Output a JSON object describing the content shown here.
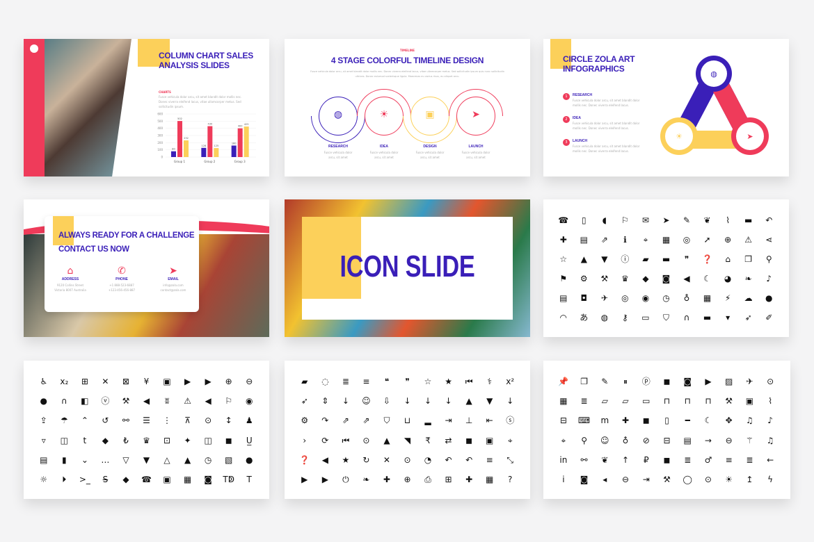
{
  "slide1": {
    "title_line1": "Column Chart Sales",
    "title_line2": "Analysis Slides",
    "label": "CHARTS",
    "body": "Fusce vehicula dolor arcu, sit amet blandit dolor mollis nec. Donec viverra eleifend lacus, vitae ullamcorper metus. Sed sollicitudin ipsum.",
    "chart_data": {
      "type": "bar",
      "categories": [
        "Group 1",
        "Group 2",
        "Group 3"
      ],
      "series": [
        {
          "values": [
            80,
            128,
            160
          ],
          "color": "#3a1fb8"
        },
        {
          "values": [
            502,
            430,
            400
          ],
          "color": "#ef3b5a"
        },
        {
          "values": [
            232,
            125,
            425
          ],
          "color": "#fcd05a"
        }
      ],
      "ylim": [
        0,
        600
      ],
      "yticks": [
        0,
        100,
        200,
        300,
        400,
        500,
        600
      ],
      "grid": true
    }
  },
  "slide2": {
    "label": "TIMELINE",
    "title": "4 Stage Colorful Timeline Design",
    "body": "Fusce vehicula dolor arcu, sit amet blandit dolor mollis nec. Donec viverra eleifend lacus, vitae ullamcorper metus. Sed sollicitudin ipsum quis nunc sollicitudin ultrices. Donec euismod scelerisque ligula. Maecenas eu varius risus, eu aliquet arcu.",
    "stages": [
      {
        "name": "RESEARCH",
        "color": "#3a1fb8",
        "icon": "globe-search-icon",
        "glyph": "◍"
      },
      {
        "name": "IDEA",
        "color": "#ef3b5a",
        "icon": "lightbulb-icon",
        "glyph": "☀"
      },
      {
        "name": "DESIGN",
        "color": "#fcd05a",
        "icon": "design-board-icon",
        "glyph": "▣"
      },
      {
        "name": "LAUNCH",
        "color": "#ef3b5a",
        "icon": "paper-plane-icon",
        "glyph": "➤"
      }
    ],
    "stage_text": "Fusce vehicula dolor arcu, sit amet"
  },
  "slide3": {
    "title_line1": "Circle Zola Art",
    "title_line2": "Infographics",
    "items": [
      {
        "num": "1",
        "name": "RESEARCH"
      },
      {
        "num": "2",
        "name": "IDEA"
      },
      {
        "num": "3",
        "name": "LAUNCH"
      }
    ],
    "item_text": "Fusce vehicula dolor arcu, sit amet blandit dolor mollis nec. Donec viverra eleifend lacus."
  },
  "slide4": {
    "title_line1": "Always Ready For A Challenge",
    "title_line2": "Contact Us Now",
    "cols": [
      {
        "name": "ADDRESS",
        "l1": "9120 Collins Street",
        "l2": "Victoria 8007 Australia"
      },
      {
        "name": "PHONE",
        "l1": "+1 888-523-6887",
        "l2": "+123-456-456-887"
      },
      {
        "name": "EMAIL",
        "l1": "info@zola.com",
        "l2": "contact@zola.com"
      }
    ]
  },
  "slide5": {
    "title": "ICON SLIDE"
  },
  "colors": {
    "accent": "#3a1fb8",
    "red": "#ef3b5a",
    "yellow": "#fcd05a"
  },
  "icons6": [
    "phone:☎",
    "mobile:▯",
    "mouse:◖",
    "signpost:⚐",
    "envelope:✉",
    "paper-plane:➤",
    "pencil:✎",
    "feather:❦",
    "paperclip:⌇",
    "car:▬",
    "reply:↶",
    "user-plus:✚",
    "id-card:▤",
    "share-square:⇗",
    "info:ℹ",
    "map-marker:⌖",
    "map:▦",
    "compass:◎",
    "location-arrow:➚",
    "crosshairs:⊕",
    "warning:⚠",
    "share:⋖",
    "star-outline:☆",
    "thumbs-up:▲",
    "thumbs-down:▼",
    "info-circle:ⓘ",
    "comments:▰",
    "comment:▬",
    "quote:❞",
    "question-circle:❓",
    "home:⌂",
    "clone:❐",
    "search:⚲",
    "flag:⚑",
    "gear:⚙",
    "tools:⚒",
    "trophy:♛",
    "tag:◆",
    "camera:◙",
    "bullhorn:◀",
    "moon:☾",
    "palette:◕",
    "leaf:❧",
    "music:♪",
    "sticky-note:▤",
    "cup:◘",
    "plane:✈",
    "life-ring:◎",
    "eye:◉",
    "clock:◷",
    "microphone:♁",
    "calendar:▦",
    "bolt:⚡",
    "cloud-download:☁",
    "tint:●",
    "dashboard:◠",
    "language:あ",
    "globe:◍",
    "key:⚷",
    "ticket:▭",
    "shield:⛉",
    "magnet:∩",
    "inbox:▬",
    "trash:▾",
    "rocket:➶",
    "paint-brush:✐"
  ],
  "icons7": [
    "wheelchair:♿",
    "subscript:x₂",
    "plus-square:⊞",
    "xing:✕",
    "xing-square:⊠",
    "yen:¥",
    "youtube:▣",
    "youtube-logo:▶",
    "play:▶",
    "zoom-in:⊕",
    "zoom-out:⊖",
    "user:●",
    "magnet:∩",
    "caret-square-left:◧",
    "vimeo:ⓥ",
    "wrench:⚒",
    "volume-off:◀",
    "vk:ʬ",
    "warning:⚠",
    "volume-up:◀",
    "flag-outline:⚐",
    "weibo:◉",
    "upload:⇪",
    "umbrella:☂",
    "chevron-up:⌃",
    "undo:↺",
    "unlink:⚯",
    "server:☰",
    "ellipsis-v:⋮",
    "chevron-circle-up:⊼",
    "arrow-circle-up:⊙",
    "arrows-v:↕",
    "user-secret:♟",
    "trash-outline:▿",
    "trello:◫",
    "tumblr:t",
    "tags:◆",
    "lira:₺",
    "trophy:♛",
    "tumblr-square:⊡",
    "twitter:✦",
    "columns:◫",
    "twitter-square:◼",
    "underline:U̲",
    "file-text:▤",
    "file:▮",
    "angle-double-down:⌄",
    "ellipsis-h:…",
    "thumbs-down-outline:▽",
    "thumbs-down:▼",
    "thumbs-up-outline:△",
    "thumbs-up:▲",
    "clock-circle:◷",
    "ticket:▧",
    "tint:●",
    "sun:☼",
    "step-forward:⏵",
    "terminal:>_",
    "strikethrough:S̶",
    "tag:◆",
    "phone:☎",
    "suitcase:▣",
    "table:▦",
    "phone-square:◙",
    "text-height:Tↁ",
    "text-width:T"
  ],
  "icons8": [
    "comments:▰",
    "spinner:◌",
    "stack-overflow:≣",
    "align-justify:≡",
    "quote-left:❝",
    "quote-right:❞",
    "star-outline:☆",
    "star-half:★",
    "step-backward:⏮",
    "stethoscope:⚕",
    "superscript:x²",
    "rocket:➶",
    "sort:⇕",
    "sort-alpha:↓",
    "smile:☺",
    "sort-amount:⇩",
    "sort-numeric:↓",
    "sort-numeric-desc:↓",
    "sort-num:↓",
    "caret-up:▲",
    "caret-down:▼",
    "sort-alpha-desc:↓",
    "gears:⚙",
    "share:↷",
    "share-square:⇗",
    "external-link:⇗",
    "shield:⛉",
    "cart:⊔",
    "signal:▂",
    "sign-out:⇥",
    "sitemap:⊥",
    "sign-in:⇤",
    "skype:ⓢ",
    "chevron-right:›",
    "refresh:⟳",
    "fast-backward:⏮",
    "arrow-circle-right:⊙",
    "road:▲",
    "rss:◥",
    "rupee:₹",
    "retweet:⇄",
    "rss-square:◼",
    "save:▣",
    "crosshairs:⌖",
    "question-circle:❓",
    "volume-down:◀",
    "star:★",
    "redo:↻",
    "times:✕",
    "dot-circle:⊙",
    "pie-chart:◔",
    "reply:↶",
    "reply-all:↶",
    "list:≡",
    "compress:⤡",
    "play-circle:▶",
    "play-square:▶",
    "power:⏻",
    "leaf:❧",
    "plus:✚",
    "plus-circle:⊕",
    "print:⎙",
    "plus-square:⊞",
    "puzzle:✚",
    "qrcode:▦",
    "question:?"
  ],
  "icons9": [
    "thumbtack:📌",
    "copy:❐",
    "pencil:✎",
    "pause:⏸",
    "pinterest:ⓟ",
    "pinterest-square:◼",
    "camera:◙",
    "play:▶",
    "image:▨",
    "plane:✈",
    "play-circle:⊙",
    "th:▦",
    "list-ol:≣",
    "folder-open:▱",
    "folder-open-outline:▱",
    "laptop:▭",
    "unlock:⊓",
    "lock:⊓",
    "unlock-alt:⊓",
    "wrench:⚒",
    "money:▣",
    "paperclip:⌇",
    "minus-square:⊟",
    "keyboard:⌨",
    "maxcdn:m",
    "medkit:✚",
    "minus-square-filled:◼",
    "mobile:▯",
    "minus:━",
    "moon:☾",
    "arrows:✥",
    "headphones:♫",
    "music:♪",
    "map-marker:⌖",
    "search:⚲",
    "smile:☺",
    "microphone:♁",
    "microphone-slash:⊘",
    "window-minimize:⊟",
    "newspaper:▤",
    "long-arrow-right:→",
    "minus-circle:⊖",
    "magic:⚚",
    "bell:♫",
    "linkedin:in",
    "chain:⚯",
    "leaf-branch:❦",
    "level-up:↑",
    "ruble:₽",
    "linkedin-square:◼",
    "list-alt:≣",
    "male:♂",
    "list:≡",
    "list-ul:≣",
    "long-arrow-left:←",
    "info:i",
    "instagram:◙",
    "caret-left:◂",
    "arrow-circle-left:⊖",
    "indent:⇥",
    "gavel:⚒",
    "lemon:◯",
    "chevron-circle-up:⊙",
    "lightbulb:☀",
    "level-up-alt:↥",
    "flash:ϟ"
  ]
}
